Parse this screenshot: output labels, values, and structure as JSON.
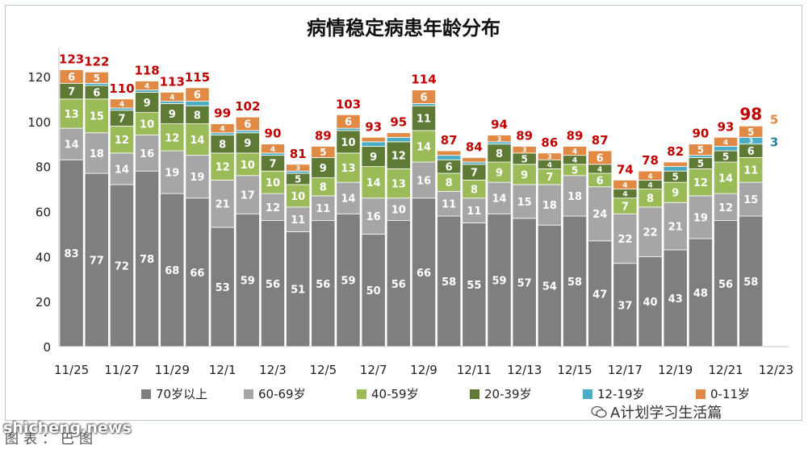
{
  "chart_data": {
    "type": "bar",
    "stacked": true,
    "title": "病情稳定病患年龄分布",
    "xlabel": "",
    "ylabel": "",
    "ylim": [
      0,
      130
    ],
    "yticks": [
      0,
      20,
      40,
      60,
      80,
      100,
      120
    ],
    "grid": false,
    "legend_position": "bottom",
    "categories": [
      "11/25",
      "11/26",
      "11/27",
      "11/28",
      "11/29",
      "11/30",
      "12/1",
      "12/2",
      "12/3",
      "12/4",
      "12/5",
      "12/6",
      "12/7",
      "12/8",
      "12/9",
      "12/10",
      "12/11",
      "12/12",
      "12/13",
      "12/14",
      "12/15",
      "12/16",
      "12/17",
      "12/18",
      "12/19",
      "12/20",
      "12/21",
      "12/22",
      "12/23"
    ],
    "xtick_labels": [
      "11/25",
      "",
      "11/27",
      "",
      "11/29",
      "",
      "12/1",
      "",
      "12/3",
      "",
      "12/5",
      "",
      "12/7",
      "",
      "12/9",
      "",
      "12/11",
      "",
      "12/13",
      "",
      "12/15",
      "",
      "12/17",
      "",
      "12/19",
      "",
      "12/21",
      "",
      "12/23"
    ],
    "series": [
      {
        "name": "70岁以上",
        "color": "#7f7f7f",
        "label_color": "#ffffff",
        "values": [
          83,
          77,
          72,
          78,
          68,
          66,
          53,
          59,
          56,
          51,
          56,
          59,
          50,
          56,
          66,
          58,
          55,
          59,
          57,
          54,
          58,
          47,
          37,
          40,
          43,
          48,
          56,
          58,
          null
        ]
      },
      {
        "name": "60-69岁",
        "color": "#a6a6a6",
        "label_color": "#ffffff",
        "values": [
          14,
          18,
          14,
          16,
          19,
          19,
          21,
          17,
          12,
          11,
          11,
          14,
          16,
          10,
          16,
          11,
          11,
          14,
          15,
          18,
          18,
          24,
          22,
          22,
          21,
          19,
          12,
          15,
          null
        ]
      },
      {
        "name": "40-59岁",
        "color": "#9bbb59",
        "label_color": "#ffffff",
        "values": [
          13,
          15,
          12,
          10,
          12,
          14,
          12,
          10,
          10,
          10,
          8,
          13,
          14,
          13,
          14,
          8,
          8,
          9,
          9,
          7,
          5,
          6,
          7,
          8,
          9,
          12,
          14,
          11,
          null
        ]
      },
      {
        "name": "20-39岁",
        "color": "#5f7a35",
        "label_color": "#ffffff",
        "values": [
          7,
          6,
          7,
          9,
          9,
          8,
          8,
          9,
          7,
          5,
          9,
          10,
          9,
          12,
          11,
          6,
          7,
          8,
          5,
          4,
          4,
          4,
          4,
          4,
          5,
          5,
          5,
          6,
          null
        ]
      },
      {
        "name": "12-19岁",
        "color": "#4bacc6",
        "label_color": "#ffffff",
        "values": [
          0,
          1,
          1,
          1,
          1,
          2,
          1,
          1,
          1,
          1,
          0,
          1,
          2,
          2,
          1,
          2,
          1,
          1,
          0,
          0,
          0,
          0,
          0,
          0,
          2,
          1,
          2,
          3,
          null
        ]
      },
      {
        "name": "0-11岁",
        "color": "#e08a45",
        "label_color": "#ffffff",
        "values": [
          6,
          5,
          4,
          4,
          4,
          6,
          4,
          6,
          4,
          3,
          5,
          6,
          2,
          2,
          6,
          2,
          2,
          3,
          3,
          3,
          4,
          6,
          4,
          4,
          2,
          5,
          4,
          5,
          null
        ]
      }
    ],
    "totals": [
      123,
      122,
      110,
      118,
      113,
      115,
      99,
      102,
      90,
      81,
      89,
      103,
      93,
      95,
      114,
      87,
      84,
      94,
      89,
      86,
      89,
      87,
      74,
      78,
      82,
      90,
      93,
      98,
      null
    ],
    "totals_color": "#c00000",
    "side_annotations": [
      {
        "text": "5",
        "color": "#e08a45"
      },
      {
        "text": "3",
        "color": "#2e7f99"
      }
    ]
  },
  "watermarks": {
    "site": "shicheng.news",
    "account": "A计划学习生活篇",
    "caption": "图表：巴图"
  }
}
